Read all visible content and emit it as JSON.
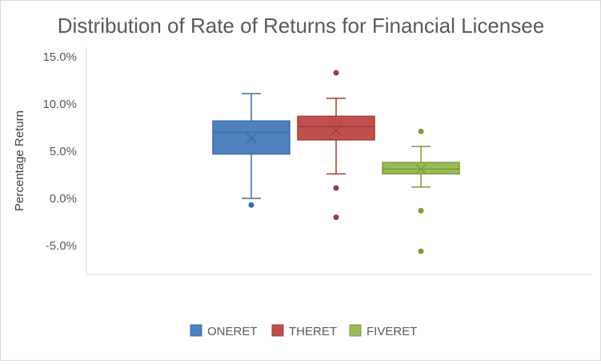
{
  "chart_data": {
    "type": "box",
    "title": "Distribution of Rate of Returns for Financial Licensee",
    "xlabel": "",
    "ylabel": "Percentage Return",
    "ylim": [
      -0.07,
      0.16
    ],
    "yticks": [
      -0.05,
      0.0,
      0.05,
      0.1,
      0.15
    ],
    "ytick_labels": [
      "-5.0%",
      "0.0%",
      "5.0%",
      "10.0%",
      "15.0%"
    ],
    "grid": false,
    "legend_position": "bottom",
    "series": [
      {
        "name": "ONERET",
        "color": "#4f81bd",
        "edge": "#3a6ea5",
        "whisker_low": 0.0,
        "q1": 0.047,
        "median": 0.07,
        "q3": 0.082,
        "whisker_high": 0.111,
        "mean": 0.064,
        "outliers": [
          -0.007
        ]
      },
      {
        "name": "THERET",
        "color": "#c0504d",
        "edge": "#a33b38",
        "whisker_low": 0.026,
        "q1": 0.062,
        "median": 0.076,
        "q3": 0.087,
        "whisker_high": 0.106,
        "mean": 0.072,
        "outliers": [
          0.133,
          0.011,
          -0.02
        ]
      },
      {
        "name": "FIVERET",
        "color": "#9bbb59",
        "edge": "#7a9a3c",
        "whisker_low": 0.012,
        "q1": 0.026,
        "median": 0.031,
        "q3": 0.038,
        "whisker_high": 0.055,
        "mean": 0.031,
        "outliers": [
          0.071,
          -0.013,
          -0.056
        ]
      }
    ]
  }
}
